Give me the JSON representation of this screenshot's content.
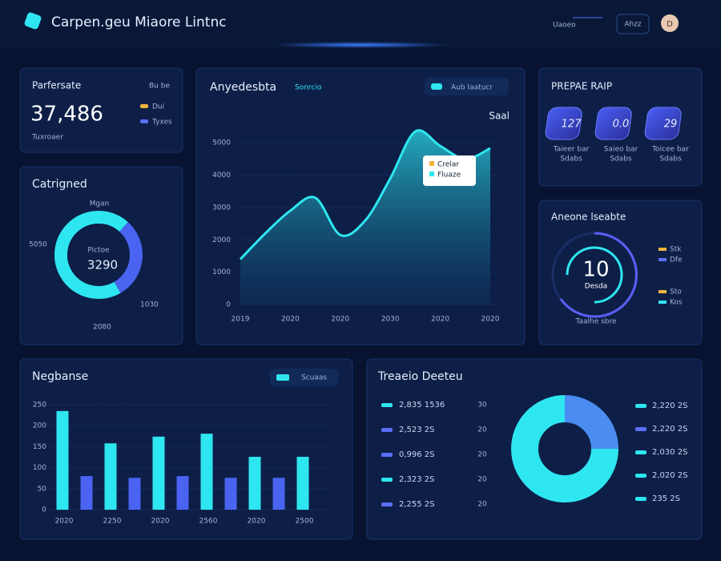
{
  "header": {
    "title": "Carpen.geu Miaore Lintnc",
    "nav": "Uaoeo",
    "button": "Ahzz",
    "avatar": "D"
  },
  "kpi": {
    "title": "Parfersate",
    "tag": "Bu be",
    "value": "37,486",
    "sub": "Tuxroaer",
    "legend": [
      "Dui",
      "Tyxes"
    ],
    "legend_colors": [
      "#f0b43c",
      "#5b6ef5"
    ]
  },
  "donut_panel": {
    "title": "Catrigned",
    "center": "3290",
    "center_sub": "Pictoe",
    "labels": [
      "Mgan",
      "5050",
      "1030",
      "2080"
    ]
  },
  "badges": {
    "title": "PREPAE RAIP",
    "items": [
      {
        "value": "127",
        "line1": "Taieer bar",
        "line2": "Sdabs"
      },
      {
        "value": "0.0",
        "line1": "Saieo bar",
        "line2": "Sdabs"
      },
      {
        "value": "29",
        "line1": "Toicee bar",
        "line2": "Sdabs"
      }
    ]
  },
  "gauge": {
    "title": "Aneone lseabte",
    "value": "10",
    "label": "Desda",
    "sub": "Taalhe sbre",
    "legend": [
      "Stk",
      "Dfe",
      "Sto",
      "Kos"
    ],
    "legend_colors": [
      "#f0b43c",
      "#5b6ef5",
      "#f0b43c",
      "#2ee6f0"
    ]
  },
  "list_panel": {
    "left": [
      [
        "2,835 1536",
        "30"
      ],
      [
        "2,523 2S",
        "20"
      ],
      [
        "0,996 2S",
        "20"
      ],
      [
        "2,323 2S",
        "20"
      ],
      [
        "2,255 2S",
        "20"
      ]
    ],
    "left_colors": [
      "#2ee6f0",
      "#5b6ef5",
      "#5b6ef5",
      "#2ee6f0",
      "#5b6ef5"
    ],
    "right": [
      "2,220 2S",
      "2,220 2S",
      "2,030 2S",
      "2,020 2S",
      "235 2S"
    ],
    "right_colors": [
      "#2ee6f0",
      "#5b6ef5",
      "#2ee6f0",
      "#2ee6f0",
      "#2ee6f0"
    ]
  },
  "chart_data": [
    {
      "type": "area",
      "title": "Anyedesbta",
      "subtitle": "Sonrcio",
      "annotation": "Saal",
      "tooltip": [
        "Crelar",
        "Fluaze"
      ],
      "categories": [
        "2019",
        null,
        "2020",
        null,
        "2020",
        null,
        "2030",
        null,
        "2020",
        null,
        "2020"
      ],
      "series": [
        {
          "name": "Aub Iaatucr",
          "color": "#2ee6f0",
          "values": [
            1400,
            2200,
            2900,
            3300,
            2150,
            2600,
            3900,
            5350,
            4900,
            4500,
            4830
          ]
        }
      ],
      "ylim": [
        0,
        5500
      ],
      "yticks": [
        0,
        1000,
        2000,
        3000,
        4000,
        5000
      ],
      "grid": true
    },
    {
      "type": "bar",
      "title": "Negbanse",
      "legend": "Scuaas",
      "legend_color": "#2ee6f0",
      "categories": [
        "2020",
        null,
        "2250",
        null,
        "2020",
        null,
        "2560",
        null,
        "2020",
        null,
        "2500"
      ],
      "values": [
        235,
        80,
        158,
        76,
        174,
        80,
        181,
        76,
        126,
        76,
        126
      ],
      "colors": [
        "#2ee6f0",
        "#4a63f0",
        "#2ee6f0",
        "#4a63f0",
        "#2ee6f0",
        "#4a63f0",
        "#2ee6f0",
        "#4a63f0",
        "#2ee6f0",
        "#4a63f0",
        "#2ee6f0"
      ],
      "ylim": [
        0,
        250
      ],
      "yticks": [
        0,
        50,
        100,
        150,
        200,
        250
      ],
      "grid": true
    },
    {
      "type": "donut",
      "values": [
        70,
        30
      ],
      "colors": [
        "#2ee6f0",
        "#4a63f0"
      ]
    },
    {
      "type": "donut",
      "title": "Treaeio Deeteu",
      "values": [
        75,
        25
      ],
      "colors": [
        "#2ee6f0",
        "#4a8cf0"
      ]
    }
  ]
}
